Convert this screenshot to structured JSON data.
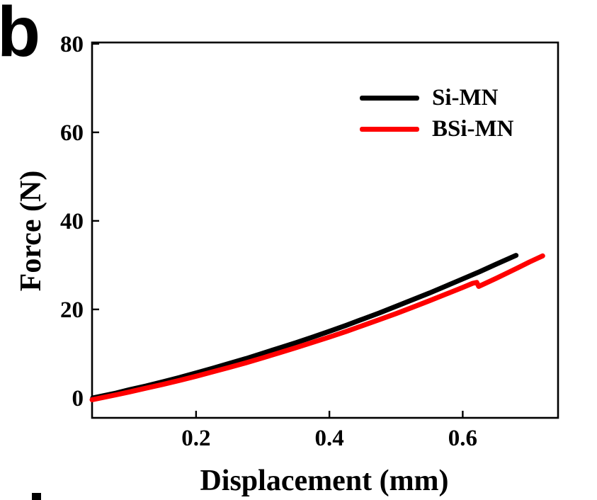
{
  "panel": {
    "label": "b"
  },
  "next_panel_hint": "top edge of following panel letter, partially visible",
  "chart_data": {
    "type": "line",
    "title": "",
    "xlabel": "Displacement (mm)",
    "ylabel": "Force (N)",
    "xlim": [
      0.044,
      0.743
    ],
    "ylim": [
      -4.5,
      80.3
    ],
    "xticks": [
      0.2,
      0.4,
      0.6
    ],
    "xtick_labels": [
      "0.2",
      "0.4",
      "0.6"
    ],
    "yticks": [
      0,
      20,
      40,
      60,
      80
    ],
    "ytick_labels": [
      "0",
      "20",
      "40",
      "60",
      "80"
    ],
    "grid": false,
    "legend_position": "upper-right-inside",
    "frame_color": "#000000",
    "series": [
      {
        "name": "Si-MN",
        "color": "#000000",
        "line_width": 7,
        "points": [
          [
            0.045,
            0.0
          ],
          [
            0.08,
            1.1
          ],
          [
            0.1,
            1.85
          ],
          [
            0.125,
            2.7
          ],
          [
            0.15,
            3.65
          ],
          [
            0.175,
            4.6
          ],
          [
            0.2,
            5.65
          ],
          [
            0.225,
            6.7
          ],
          [
            0.25,
            7.8
          ],
          [
            0.275,
            8.9
          ],
          [
            0.3,
            10.1
          ],
          [
            0.325,
            11.3
          ],
          [
            0.35,
            12.5
          ],
          [
            0.375,
            13.75
          ],
          [
            0.4,
            15.05
          ],
          [
            0.425,
            16.4
          ],
          [
            0.45,
            17.8
          ],
          [
            0.475,
            19.2
          ],
          [
            0.5,
            20.7
          ],
          [
            0.525,
            22.2
          ],
          [
            0.55,
            23.7
          ],
          [
            0.575,
            25.3
          ],
          [
            0.6,
            26.9
          ],
          [
            0.625,
            28.5
          ],
          [
            0.65,
            30.2
          ],
          [
            0.68,
            32.2
          ]
        ]
      },
      {
        "name": "BSi-MN",
        "color": "#ff0000",
        "line_width": 7,
        "points": [
          [
            0.044,
            -0.4
          ],
          [
            0.08,
            0.7
          ],
          [
            0.1,
            1.35
          ],
          [
            0.125,
            2.2
          ],
          [
            0.15,
            3.05
          ],
          [
            0.175,
            3.95
          ],
          [
            0.2,
            4.9
          ],
          [
            0.225,
            5.9
          ],
          [
            0.25,
            6.9
          ],
          [
            0.275,
            7.95
          ],
          [
            0.3,
            9.05
          ],
          [
            0.325,
            10.2
          ],
          [
            0.35,
            11.35
          ],
          [
            0.375,
            12.55
          ],
          [
            0.4,
            13.75
          ],
          [
            0.425,
            15.0
          ],
          [
            0.45,
            16.35
          ],
          [
            0.475,
            17.7
          ],
          [
            0.5,
            19.05
          ],
          [
            0.525,
            20.5
          ],
          [
            0.55,
            21.95
          ],
          [
            0.575,
            23.45
          ],
          [
            0.6,
            24.95
          ],
          [
            0.615,
            25.9
          ],
          [
            0.621,
            26.1
          ],
          [
            0.624,
            25.2
          ],
          [
            0.65,
            27.0
          ],
          [
            0.68,
            29.2
          ],
          [
            0.7,
            30.7
          ],
          [
            0.72,
            32.1
          ]
        ]
      }
    ]
  }
}
